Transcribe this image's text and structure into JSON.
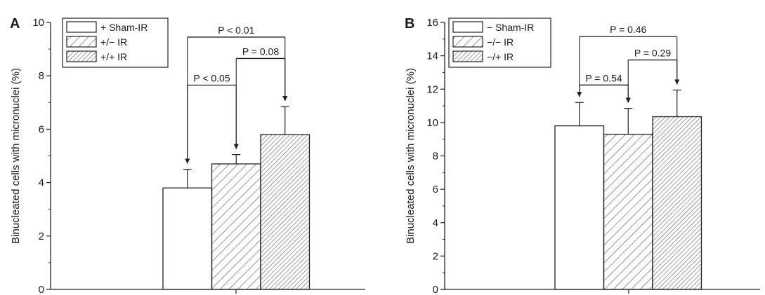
{
  "chart_data": [
    {
      "type": "bar",
      "panel_label": "A",
      "ylabel": "Binucleated cells with micronuclei (%)",
      "ylim": [
        0,
        10
      ],
      "yticks": [
        "0",
        "2",
        "4",
        "6",
        "8",
        "10"
      ],
      "series": [
        {
          "name": "+ Sham-IR",
          "value": 3.8,
          "error": 0.7,
          "pattern": "none"
        },
        {
          "name": "+/− IR",
          "value": 4.7,
          "error": 0.35,
          "pattern": "sparse"
        },
        {
          "name": "+/+ IR",
          "value": 5.8,
          "error": 1.05,
          "pattern": "dense"
        }
      ],
      "annotations": [
        {
          "label": "P < 0.05",
          "from": 0,
          "to": 1,
          "level": 7.65
        },
        {
          "label": "P = 0.08",
          "from": 1,
          "to": 2,
          "level": 8.65
        },
        {
          "label": "P < 0.01",
          "from": 0,
          "to": 2,
          "level": 9.45
        }
      ],
      "legend_position": "top-left"
    },
    {
      "type": "bar",
      "panel_label": "B",
      "ylabel": "Binucleated cells with micronuclei (%)",
      "ylim": [
        0,
        16
      ],
      "yticks": [
        "0",
        "2",
        "4",
        "6",
        "8",
        "10",
        "12",
        "14",
        "16"
      ],
      "series": [
        {
          "name": "− Sham-IR",
          "value": 9.8,
          "error": 1.4,
          "pattern": "none"
        },
        {
          "name": "−/− IR",
          "value": 9.3,
          "error": 1.55,
          "pattern": "sparse"
        },
        {
          "name": "−/+ IR",
          "value": 10.35,
          "error": 1.6,
          "pattern": "dense"
        }
      ],
      "annotations": [
        {
          "label": "P = 0.54",
          "from": 0,
          "to": 1,
          "level": 12.25
        },
        {
          "label": "P = 0.29",
          "from": 1,
          "to": 2,
          "level": 13.75
        },
        {
          "label": "P = 0.46",
          "from": 0,
          "to": 2,
          "level": 15.15
        }
      ],
      "legend_position": "top-left"
    }
  ]
}
